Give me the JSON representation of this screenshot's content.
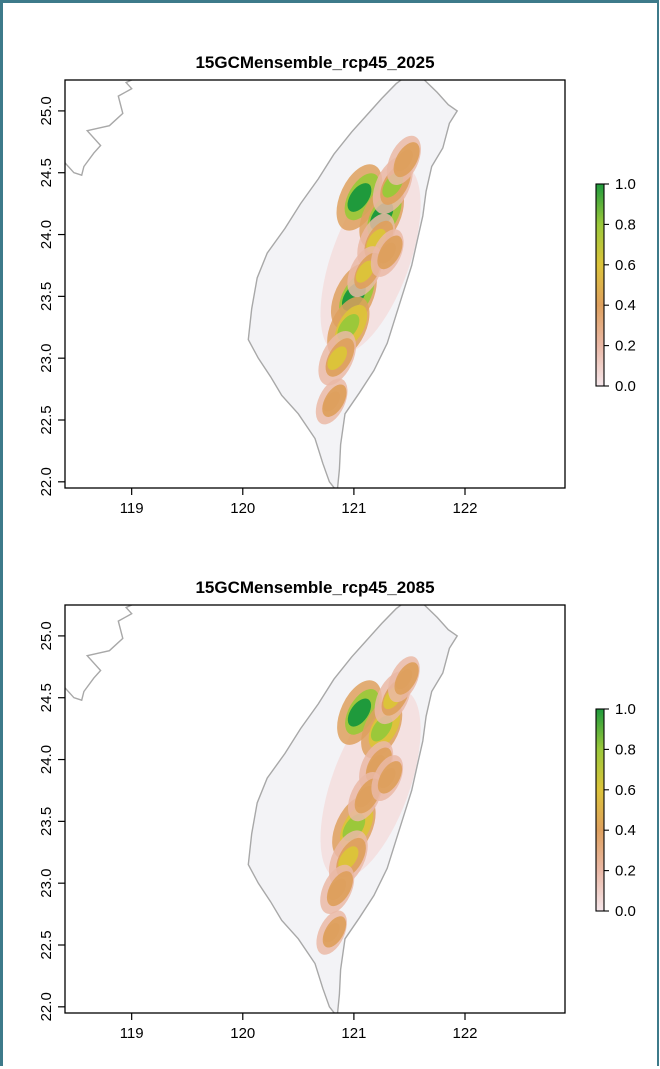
{
  "chart_data": [
    {
      "type": "heatmap",
      "title": "15GCMensemble_rcp45_2025",
      "xlabel": "",
      "ylabel": "",
      "xlim": [
        118.4,
        122.9
      ],
      "ylim": [
        21.95,
        25.25
      ],
      "xticks": [
        "119",
        "120",
        "121",
        "122"
      ],
      "yticks": [
        "22.0",
        "22.5",
        "23.0",
        "23.5",
        "24.0",
        "24.5",
        "25.0"
      ],
      "legend": {
        "placement": "right",
        "ticks": [
          "0.0",
          "0.2",
          "0.4",
          "0.6",
          "0.8",
          "1.0"
        ],
        "range": [
          0,
          1
        ],
        "colors": [
          "#f5e6ea",
          "#eab8a6",
          "#dea05e",
          "#dcc33a",
          "#9bc83a",
          "#1f9a3c"
        ]
      },
      "suitability_hotspots": [
        {
          "lon": 121.05,
          "lat": 24.3,
          "value": 0.95
        },
        {
          "lon": 121.25,
          "lat": 24.15,
          "value": 0.9
        },
        {
          "lon": 121.35,
          "lat": 24.4,
          "value": 0.7
        },
        {
          "lon": 121.2,
          "lat": 23.95,
          "value": 0.6
        },
        {
          "lon": 121.0,
          "lat": 23.5,
          "value": 0.95
        },
        {
          "lon": 120.95,
          "lat": 23.25,
          "value": 0.8
        },
        {
          "lon": 120.85,
          "lat": 23.0,
          "value": 0.6
        },
        {
          "lon": 121.1,
          "lat": 23.7,
          "value": 0.5
        },
        {
          "lon": 121.3,
          "lat": 23.85,
          "value": 0.4
        },
        {
          "lon": 121.45,
          "lat": 24.6,
          "value": 0.45
        },
        {
          "lon": 120.8,
          "lat": 22.65,
          "value": 0.35
        }
      ]
    },
    {
      "type": "heatmap",
      "title": "15GCMensemble_rcp45_2085",
      "xlabel": "",
      "ylabel": "",
      "xlim": [
        118.4,
        122.9
      ],
      "ylim": [
        21.95,
        25.25
      ],
      "xticks": [
        "119",
        "120",
        "121",
        "122"
      ],
      "yticks": [
        "22.0",
        "22.5",
        "23.0",
        "23.5",
        "24.0",
        "24.5",
        "25.0"
      ],
      "legend": {
        "placement": "right",
        "ticks": [
          "0.0",
          "0.2",
          "0.4",
          "0.6",
          "0.8",
          "1.0"
        ],
        "range": [
          0,
          1
        ],
        "colors": [
          "#f5e6ea",
          "#eab8a6",
          "#dea05e",
          "#dcc33a",
          "#9bc83a",
          "#1f9a3c"
        ]
      },
      "suitability_hotspots": [
        {
          "lon": 121.05,
          "lat": 24.38,
          "value": 0.9
        },
        {
          "lon": 121.25,
          "lat": 24.25,
          "value": 0.75
        },
        {
          "lon": 121.35,
          "lat": 24.5,
          "value": 0.55
        },
        {
          "lon": 121.2,
          "lat": 23.95,
          "value": 0.45
        },
        {
          "lon": 121.0,
          "lat": 23.45,
          "value": 0.85
        },
        {
          "lon": 120.95,
          "lat": 23.2,
          "value": 0.65
        },
        {
          "lon": 120.85,
          "lat": 22.95,
          "value": 0.45
        },
        {
          "lon": 121.1,
          "lat": 23.7,
          "value": 0.45
        },
        {
          "lon": 121.3,
          "lat": 23.85,
          "value": 0.35
        },
        {
          "lon": 121.45,
          "lat": 24.65,
          "value": 0.35
        },
        {
          "lon": 120.8,
          "lat": 22.6,
          "value": 0.3
        }
      ]
    }
  ]
}
